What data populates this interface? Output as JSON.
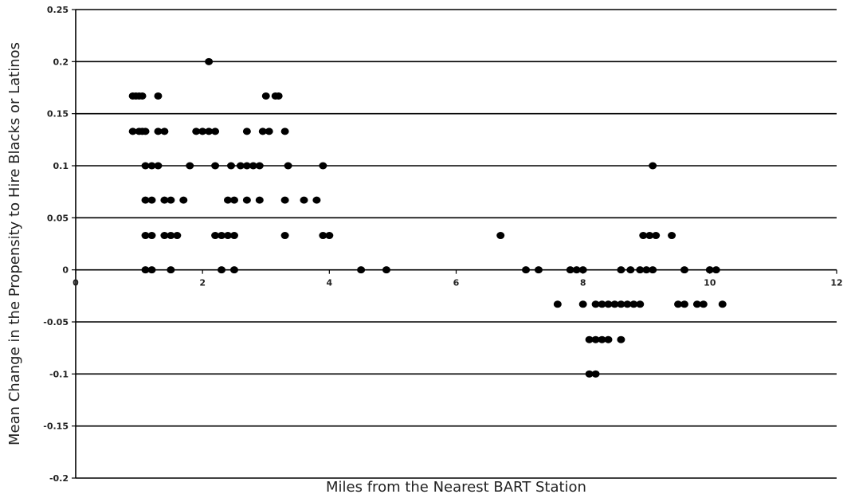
{
  "chart_data": {
    "type": "scatter",
    "title": "",
    "xlabel": "Miles from the Nearest BART Station",
    "ylabel": "Mean Change in the Propensity to Hire Blacks or Latinos",
    "xlim": [
      0,
      12
    ],
    "ylim": [
      -0.2,
      0.25
    ],
    "xticks": [
      0,
      2,
      4,
      6,
      8,
      10,
      12
    ],
    "yticks": [
      0.25,
      0.2,
      0.15,
      0.1,
      0.05,
      0,
      -0.05,
      -0.1,
      -0.15,
      -0.2
    ],
    "ytick_labels": [
      "0.25",
      "0.2",
      "0.15",
      "0.1",
      "0.05",
      "0",
      "-0.05",
      "-0.1",
      "-0.15",
      "-0.2"
    ],
    "xtick_labels": [
      "0",
      "2",
      "4",
      "6",
      "8",
      "10",
      "12"
    ],
    "grid": "horizontal",
    "legend": "none",
    "marker_color": "#000000",
    "points": [
      {
        "x": 2.1,
        "y": 0.2
      },
      {
        "x": 0.9,
        "y": 0.167
      },
      {
        "x": 0.95,
        "y": 0.167
      },
      {
        "x": 1.0,
        "y": 0.167
      },
      {
        "x": 1.05,
        "y": 0.167
      },
      {
        "x": 1.3,
        "y": 0.167
      },
      {
        "x": 3.0,
        "y": 0.167
      },
      {
        "x": 3.15,
        "y": 0.167
      },
      {
        "x": 3.2,
        "y": 0.167
      },
      {
        "x": 0.9,
        "y": 0.133
      },
      {
        "x": 1.0,
        "y": 0.133
      },
      {
        "x": 1.05,
        "y": 0.133
      },
      {
        "x": 1.1,
        "y": 0.133
      },
      {
        "x": 1.3,
        "y": 0.133
      },
      {
        "x": 1.4,
        "y": 0.133
      },
      {
        "x": 1.9,
        "y": 0.133
      },
      {
        "x": 2.0,
        "y": 0.133
      },
      {
        "x": 2.1,
        "y": 0.133
      },
      {
        "x": 2.2,
        "y": 0.133
      },
      {
        "x": 2.7,
        "y": 0.133
      },
      {
        "x": 2.95,
        "y": 0.133
      },
      {
        "x": 3.05,
        "y": 0.133
      },
      {
        "x": 3.3,
        "y": 0.133
      },
      {
        "x": 1.1,
        "y": 0.1
      },
      {
        "x": 1.2,
        "y": 0.1
      },
      {
        "x": 1.3,
        "y": 0.1
      },
      {
        "x": 1.8,
        "y": 0.1
      },
      {
        "x": 2.2,
        "y": 0.1
      },
      {
        "x": 2.45,
        "y": 0.1
      },
      {
        "x": 2.6,
        "y": 0.1
      },
      {
        "x": 2.7,
        "y": 0.1
      },
      {
        "x": 2.8,
        "y": 0.1
      },
      {
        "x": 2.9,
        "y": 0.1
      },
      {
        "x": 3.35,
        "y": 0.1
      },
      {
        "x": 3.9,
        "y": 0.1
      },
      {
        "x": 9.1,
        "y": 0.1
      },
      {
        "x": 1.1,
        "y": 0.067
      },
      {
        "x": 1.2,
        "y": 0.067
      },
      {
        "x": 1.4,
        "y": 0.067
      },
      {
        "x": 1.5,
        "y": 0.067
      },
      {
        "x": 1.7,
        "y": 0.067
      },
      {
        "x": 2.4,
        "y": 0.067
      },
      {
        "x": 2.5,
        "y": 0.067
      },
      {
        "x": 2.7,
        "y": 0.067
      },
      {
        "x": 2.9,
        "y": 0.067
      },
      {
        "x": 3.3,
        "y": 0.067
      },
      {
        "x": 3.6,
        "y": 0.067
      },
      {
        "x": 3.8,
        "y": 0.067
      },
      {
        "x": 1.1,
        "y": 0.033
      },
      {
        "x": 1.2,
        "y": 0.033
      },
      {
        "x": 1.4,
        "y": 0.033
      },
      {
        "x": 1.5,
        "y": 0.033
      },
      {
        "x": 1.6,
        "y": 0.033
      },
      {
        "x": 2.2,
        "y": 0.033
      },
      {
        "x": 2.3,
        "y": 0.033
      },
      {
        "x": 2.4,
        "y": 0.033
      },
      {
        "x": 2.5,
        "y": 0.033
      },
      {
        "x": 3.3,
        "y": 0.033
      },
      {
        "x": 3.9,
        "y": 0.033
      },
      {
        "x": 4.0,
        "y": 0.033
      },
      {
        "x": 6.7,
        "y": 0.033
      },
      {
        "x": 8.95,
        "y": 0.033
      },
      {
        "x": 9.05,
        "y": 0.033
      },
      {
        "x": 9.15,
        "y": 0.033
      },
      {
        "x": 9.4,
        "y": 0.033
      },
      {
        "x": 1.1,
        "y": 0
      },
      {
        "x": 1.2,
        "y": 0
      },
      {
        "x": 1.5,
        "y": 0
      },
      {
        "x": 2.3,
        "y": 0
      },
      {
        "x": 2.5,
        "y": 0
      },
      {
        "x": 4.5,
        "y": 0
      },
      {
        "x": 4.9,
        "y": 0
      },
      {
        "x": 7.1,
        "y": 0
      },
      {
        "x": 7.3,
        "y": 0
      },
      {
        "x": 7.8,
        "y": 0
      },
      {
        "x": 7.9,
        "y": 0
      },
      {
        "x": 8.0,
        "y": 0
      },
      {
        "x": 8.6,
        "y": 0
      },
      {
        "x": 8.75,
        "y": 0
      },
      {
        "x": 8.9,
        "y": 0
      },
      {
        "x": 9.0,
        "y": 0
      },
      {
        "x": 9.1,
        "y": 0
      },
      {
        "x": 9.6,
        "y": 0
      },
      {
        "x": 10.0,
        "y": 0
      },
      {
        "x": 10.1,
        "y": 0
      },
      {
        "x": 7.6,
        "y": -0.033
      },
      {
        "x": 8.0,
        "y": -0.033
      },
      {
        "x": 8.2,
        "y": -0.033
      },
      {
        "x": 8.3,
        "y": -0.033
      },
      {
        "x": 8.4,
        "y": -0.033
      },
      {
        "x": 8.5,
        "y": -0.033
      },
      {
        "x": 8.6,
        "y": -0.033
      },
      {
        "x": 8.7,
        "y": -0.033
      },
      {
        "x": 8.8,
        "y": -0.033
      },
      {
        "x": 8.9,
        "y": -0.033
      },
      {
        "x": 9.5,
        "y": -0.033
      },
      {
        "x": 9.6,
        "y": -0.033
      },
      {
        "x": 9.8,
        "y": -0.033
      },
      {
        "x": 9.9,
        "y": -0.033
      },
      {
        "x": 10.2,
        "y": -0.033
      },
      {
        "x": 8.1,
        "y": -0.067
      },
      {
        "x": 8.2,
        "y": -0.067
      },
      {
        "x": 8.3,
        "y": -0.067
      },
      {
        "x": 8.4,
        "y": -0.067
      },
      {
        "x": 8.6,
        "y": -0.067
      },
      {
        "x": 8.1,
        "y": -0.1
      },
      {
        "x": 8.2,
        "y": -0.1
      }
    ]
  }
}
